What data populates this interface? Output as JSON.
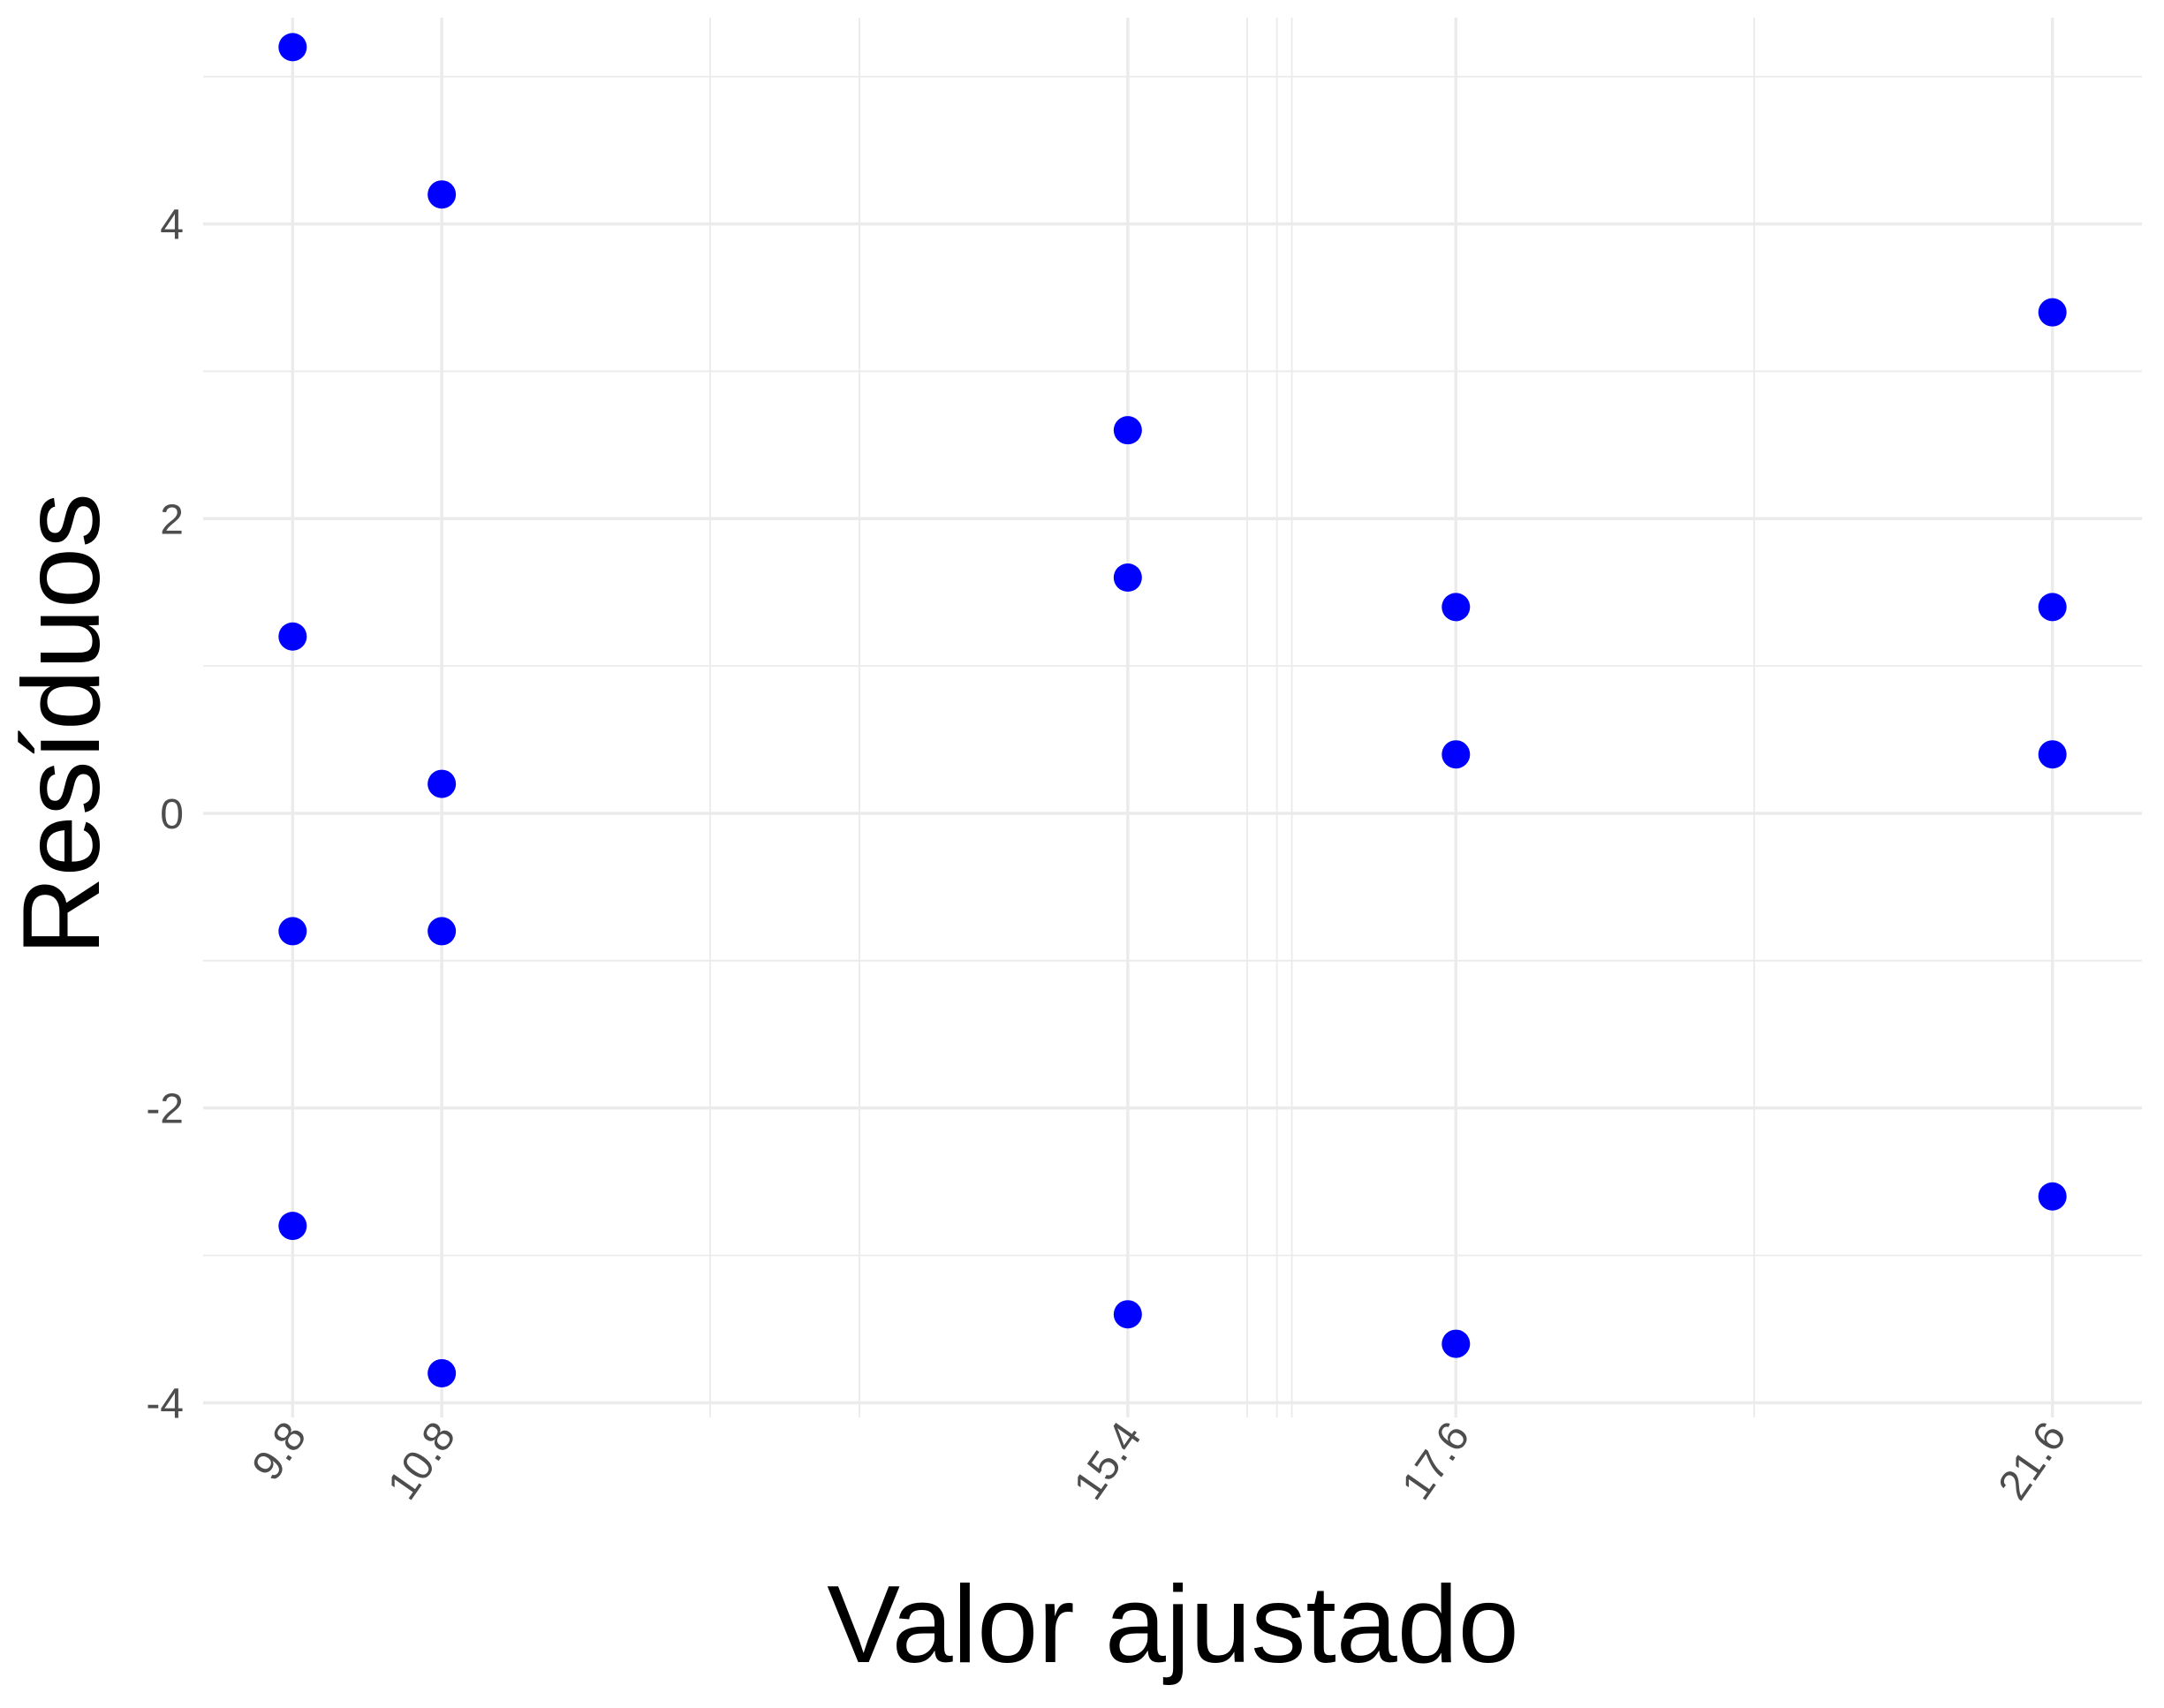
{
  "chart_data": {
    "type": "scatter",
    "title": "",
    "xlabel": "Valor ajustado",
    "ylabel": "Resíduos",
    "x_breaks": [
      9.8,
      10.8,
      15.4,
      17.6,
      21.6
    ],
    "x_tick_labels": [
      "9.8",
      "10.8",
      "15.4",
      "17.6",
      "21.6"
    ],
    "x_minor_breaks": [
      12.6,
      13.6,
      16.2,
      16.4,
      16.5,
      19.6
    ],
    "xlim": [
      9.2,
      22.2
    ],
    "y_breaks": [
      -4,
      -2,
      0,
      2,
      4
    ],
    "y_tick_labels": [
      "-4",
      "-2",
      "0",
      "2",
      "4"
    ],
    "y_minor_breaks": [
      -3,
      -1,
      1,
      3,
      5
    ],
    "ylim": [
      -4.1,
      5.4
    ],
    "grid": true,
    "point_color": "#0000ff",
    "points": [
      {
        "x": 9.8,
        "y": 5.2
      },
      {
        "x": 9.8,
        "y": 1.2
      },
      {
        "x": 9.8,
        "y": -0.8
      },
      {
        "x": 9.8,
        "y": -2.8
      },
      {
        "x": 10.8,
        "y": 4.2
      },
      {
        "x": 10.8,
        "y": 0.2
      },
      {
        "x": 10.8,
        "y": -0.8
      },
      {
        "x": 10.8,
        "y": -3.8
      },
      {
        "x": 15.4,
        "y": 2.6
      },
      {
        "x": 15.4,
        "y": 1.6
      },
      {
        "x": 15.4,
        "y": -3.4
      },
      {
        "x": 17.6,
        "y": 1.4
      },
      {
        "x": 17.6,
        "y": 0.4
      },
      {
        "x": 17.6,
        "y": -3.6
      },
      {
        "x": 21.6,
        "y": 3.4
      },
      {
        "x": 21.6,
        "y": 1.4
      },
      {
        "x": 21.6,
        "y": 0.4
      },
      {
        "x": 21.6,
        "y": -2.6
      }
    ]
  }
}
